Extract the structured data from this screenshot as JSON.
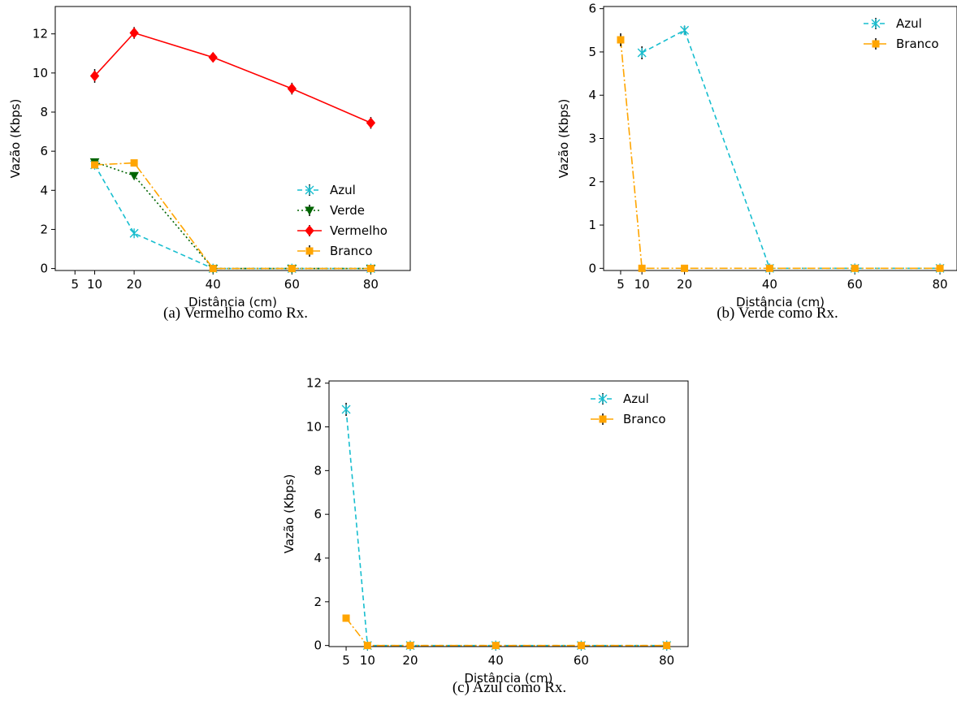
{
  "styles": {
    "Azul": {
      "color": "#17becf",
      "dash": "6,4",
      "marker": "x"
    },
    "Verde": {
      "color": "#006400",
      "dash": "2,3",
      "marker": "tri_down"
    },
    "Vermelho": {
      "color": "#ff0000",
      "dash": "",
      "marker": "diamond"
    },
    "Branco": {
      "color": "#ffa500",
      "dash": "10,3,2,3",
      "marker": "square"
    }
  },
  "chart_data": [
    {
      "type": "line",
      "caption": "(a) Vermelho como Rx.",
      "xlabel": "Distância (cm)",
      "ylabel": "Vazão (Kbps)",
      "xticks": [
        5,
        10,
        20,
        40,
        60,
        80
      ],
      "yticks": [
        0,
        2,
        4,
        6,
        8,
        10,
        12
      ],
      "xlim": [
        0,
        90
      ],
      "ylim": [
        -0.1,
        13.4
      ],
      "legend_position": "lower-right",
      "series": [
        {
          "name": "Azul",
          "x": [
            10,
            20,
            40,
            60,
            80
          ],
          "y": [
            5.3,
            1.8,
            0,
            0,
            0
          ],
          "err": [
            0.1,
            0.1,
            0,
            0,
            0
          ]
        },
        {
          "name": "Verde",
          "x": [
            10,
            20,
            40,
            60,
            80
          ],
          "y": [
            5.45,
            4.75,
            0,
            0,
            0
          ],
          "err": [
            0.1,
            0.1,
            0,
            0,
            0
          ]
        },
        {
          "name": "Vermelho",
          "x": [
            10,
            20,
            40,
            60,
            80
          ],
          "y": [
            9.85,
            12.05,
            10.8,
            9.2,
            7.45
          ],
          "err": [
            0.35,
            0.3,
            0.2,
            0.3,
            0.3
          ]
        },
        {
          "name": "Branco",
          "x": [
            10,
            20,
            40,
            60,
            80
          ],
          "y": [
            5.3,
            5.4,
            0,
            0,
            0
          ],
          "err": [
            0.1,
            0.1,
            0,
            0,
            0
          ]
        }
      ]
    },
    {
      "type": "line",
      "caption": "(b) Verde como Rx.",
      "xlabel": "Distância (cm)",
      "ylabel": "Vazão (Kbps)",
      "xticks": [
        5,
        10,
        20,
        40,
        60,
        80
      ],
      "yticks": [
        0,
        1,
        2,
        3,
        4,
        5,
        6
      ],
      "xlim": [
        1,
        84
      ],
      "ylim": [
        -0.05,
        6.05
      ],
      "legend_position": "upper-right",
      "series": [
        {
          "name": "Azul",
          "x": [
            10,
            20,
            40,
            60,
            80
          ],
          "y": [
            4.98,
            5.5,
            0,
            0,
            0
          ],
          "err": [
            0.15,
            0.1,
            0,
            0,
            0
          ]
        },
        {
          "name": "Branco",
          "x": [
            5,
            10,
            20,
            40,
            60,
            80
          ],
          "y": [
            5.28,
            0,
            0,
            0,
            0,
            0
          ],
          "err": [
            0.15,
            0,
            0,
            0,
            0,
            0
          ]
        }
      ]
    },
    {
      "type": "line",
      "caption": "(c) Azul como Rx.",
      "xlabel": "Distância (cm)",
      "ylabel": "Vazão (Kbps)",
      "xticks": [
        5,
        10,
        20,
        40,
        60,
        80
      ],
      "yticks": [
        0,
        2,
        4,
        6,
        8,
        10,
        12
      ],
      "xlim": [
        1,
        85
      ],
      "ylim": [
        -0.05,
        12.1
      ],
      "legend_position": "upper-right",
      "series": [
        {
          "name": "Azul",
          "x": [
            5,
            10,
            20,
            40,
            60,
            80
          ],
          "y": [
            10.8,
            0,
            0,
            0,
            0,
            0
          ],
          "err": [
            0.3,
            0,
            0,
            0,
            0,
            0
          ]
        },
        {
          "name": "Branco",
          "x": [
            5,
            10,
            20,
            40,
            60,
            80
          ],
          "y": [
            1.25,
            0,
            0,
            0,
            0,
            0
          ],
          "err": [
            0.1,
            0,
            0,
            0,
            0,
            0
          ]
        }
      ]
    }
  ]
}
